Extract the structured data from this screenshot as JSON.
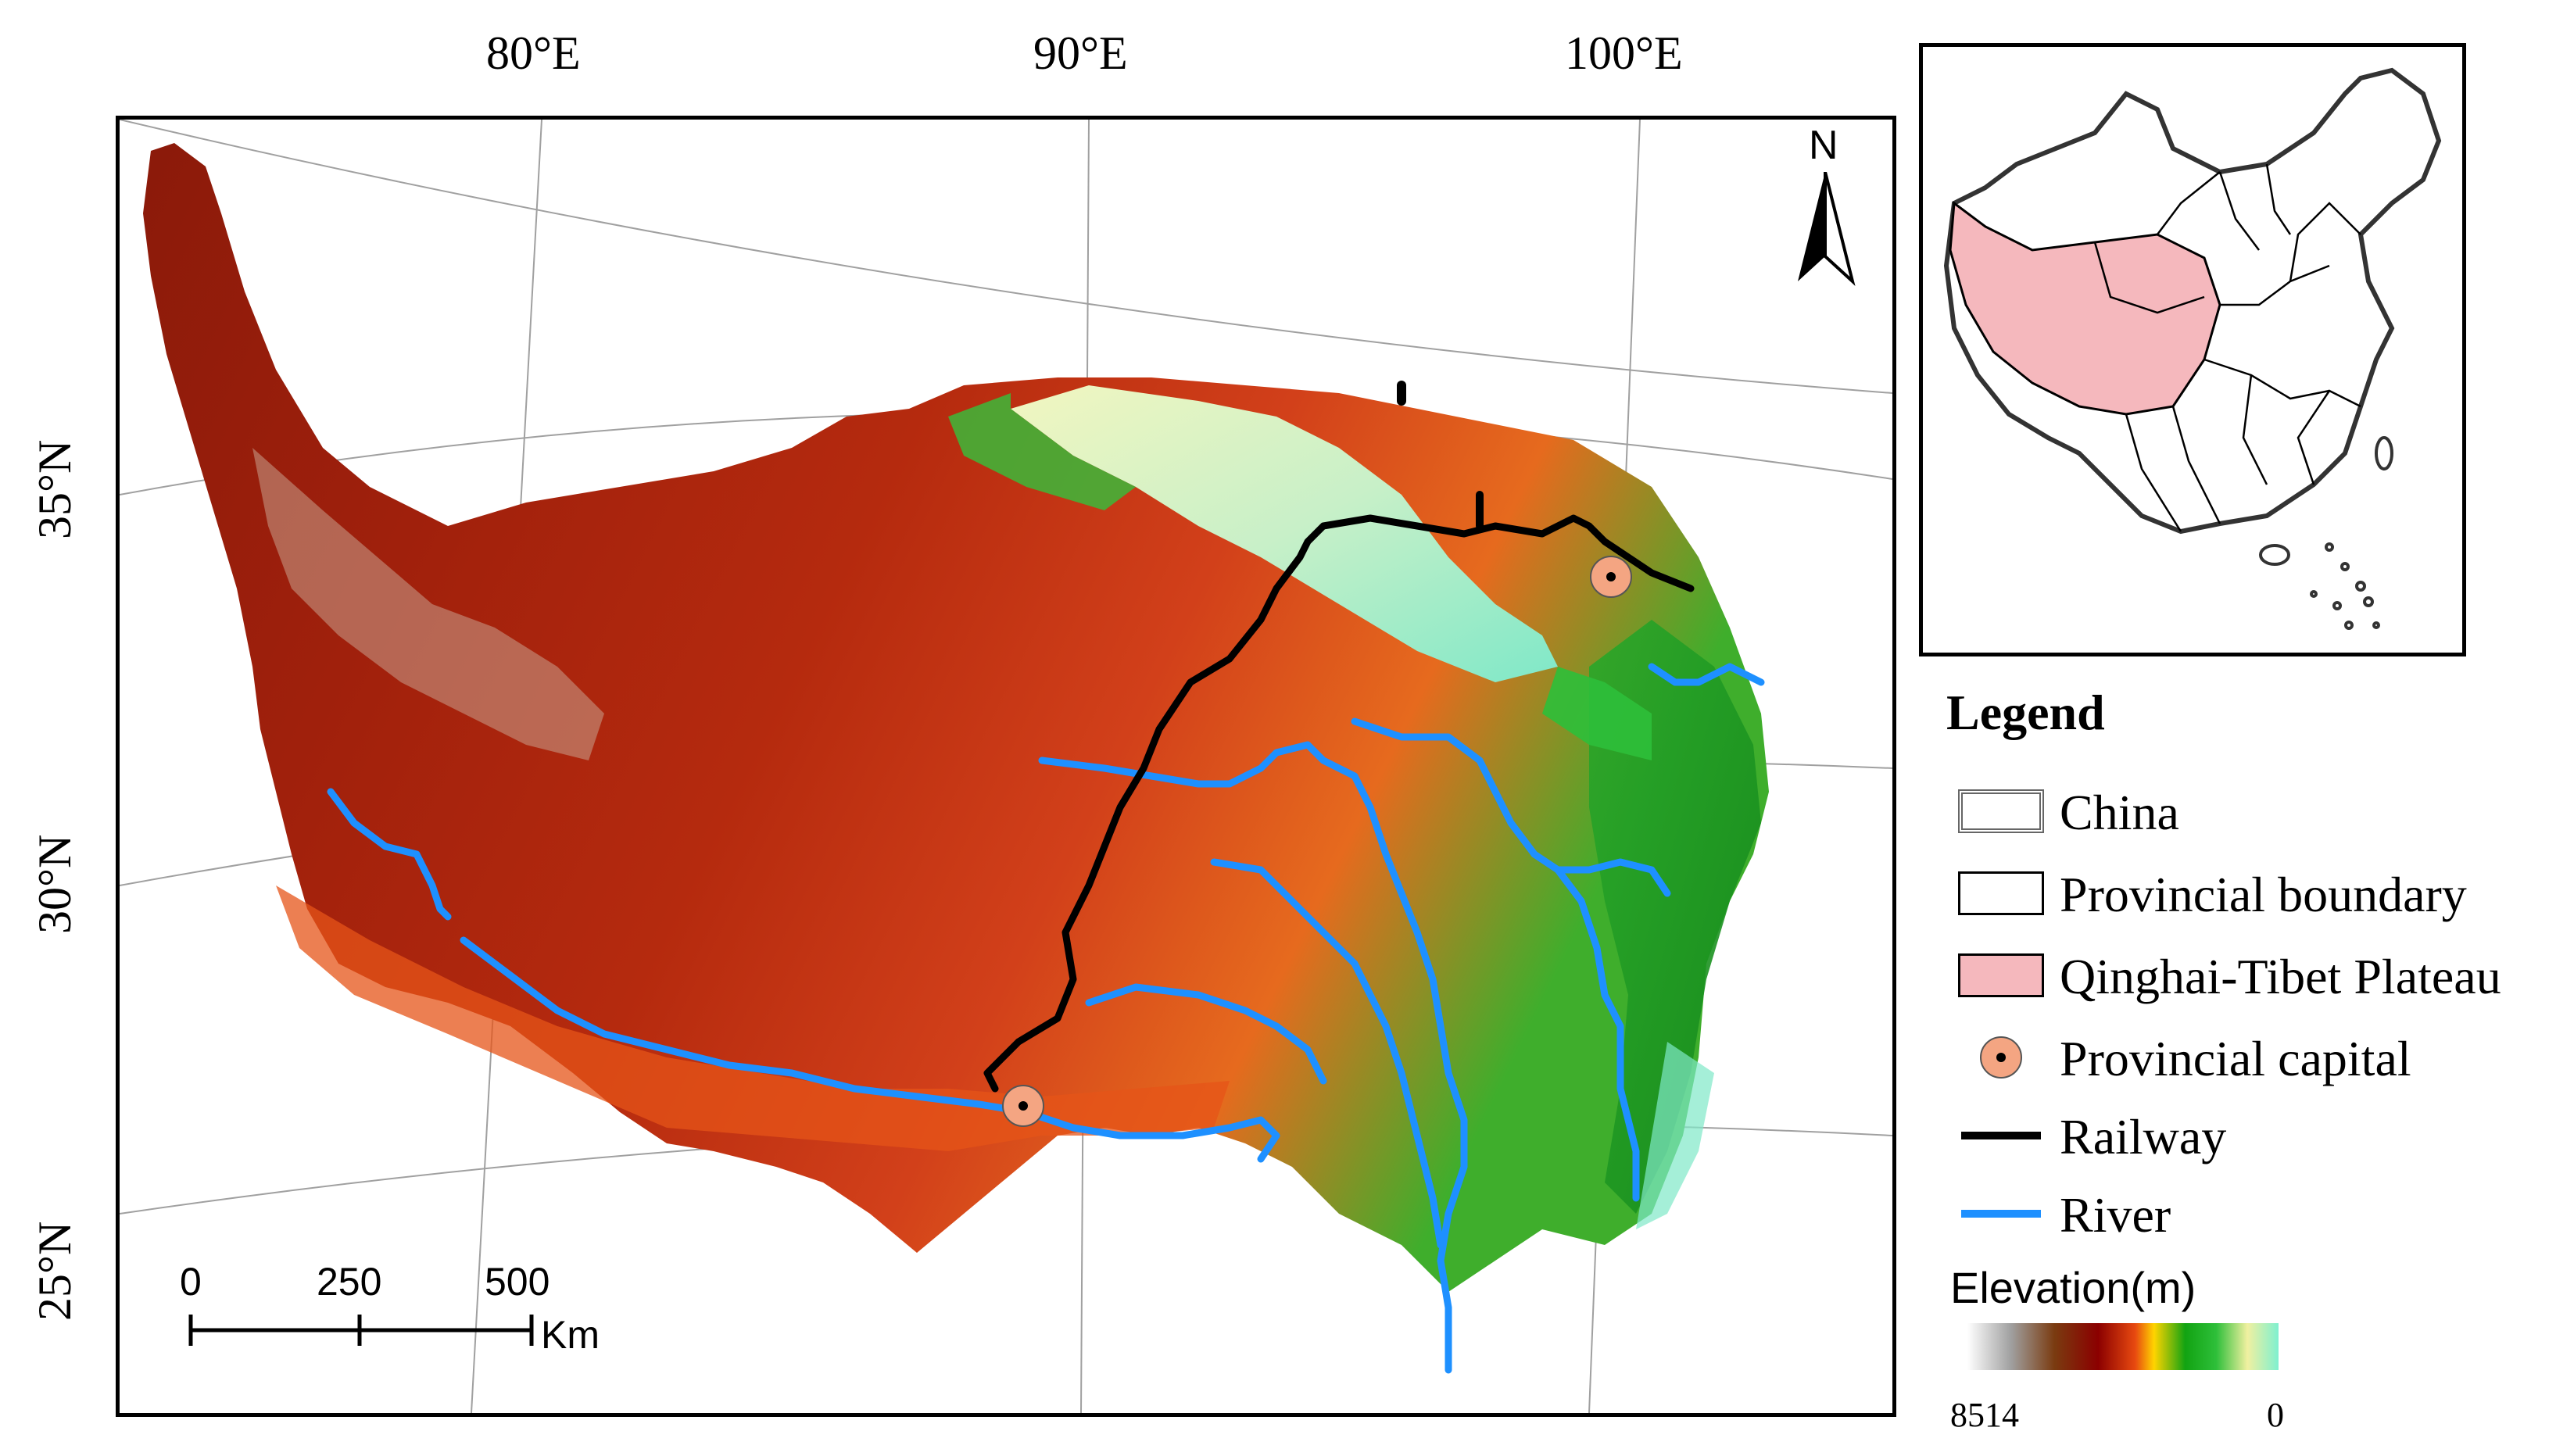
{
  "graticule": {
    "lon_labels": [
      "80°E",
      "90°E",
      "100°E"
    ],
    "lat_labels": [
      "35°N",
      "30°N",
      "25°N"
    ]
  },
  "north_arrow": {
    "label": "N"
  },
  "scale_bar": {
    "ticks": [
      "0",
      "250",
      "500"
    ],
    "unit": "Km"
  },
  "legend": {
    "title": "Legend",
    "items": [
      {
        "label": "China",
        "symbol": "china-outline"
      },
      {
        "label": "Provincial boundary",
        "symbol": "white-box"
      },
      {
        "label": "Qinghai-Tibet Plateau",
        "symbol": "pink-box"
      },
      {
        "label": "Provincial capital",
        "symbol": "capital-dot"
      },
      {
        "label": "Railway",
        "symbol": "black-line"
      },
      {
        "label": "River",
        "symbol": "blue-line"
      }
    ],
    "elevation": {
      "title": "Elevation(m)",
      "max_label": "8514",
      "min_label": "0"
    }
  },
  "colors": {
    "plateau_pink": "#f5b8bd",
    "river_blue": "#1e90ff",
    "railway_black": "#000000",
    "capital_fill": "#f4a582",
    "elevation_ramp": [
      "#ffffff",
      "#a0a0a0",
      "#7a3b10",
      "#8b0000",
      "#e84a10",
      "#ffd400",
      "#12a312",
      "#2ebf3a",
      "#f0f0a0",
      "#7ff0d0"
    ]
  }
}
